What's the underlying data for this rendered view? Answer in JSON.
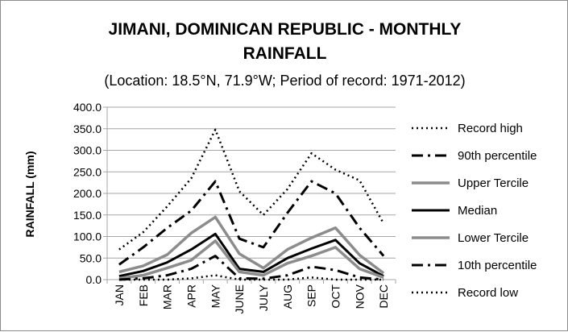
{
  "chart_data": {
    "type": "line",
    "title_line1": "JIMANI, DOMINICAN REPUBLIC - MONTHLY",
    "title_line2": "RAINFALL",
    "subtitle": "(Location: 18.5°N, 71.9°W; Period of record: 1971-2012)",
    "ylabel": "RAINFALL (mm)",
    "xlabel": "",
    "ylim": [
      0,
      400
    ],
    "yticks": [
      "0.0",
      "50.0",
      "100.0",
      "150.0",
      "200.0",
      "250.0",
      "300.0",
      "350.0",
      "400.0"
    ],
    "grid": true,
    "legend_position": "right",
    "categories": [
      "JAN",
      "FEB",
      "MAR",
      "APR",
      "MAY",
      "JUNE",
      "JULY",
      "AUG",
      "SEP",
      "OCT",
      "NOV",
      "DEC"
    ],
    "series": [
      {
        "name": "Record high",
        "values": [
          70,
          110,
          170,
          235,
          348,
          205,
          150,
          210,
          293,
          255,
          230,
          130
        ],
        "color": "#000000",
        "width": 2.5,
        "dash": "2,4"
      },
      {
        "name": "90th percentile",
        "values": [
          35,
          75,
          120,
          160,
          228,
          95,
          75,
          155,
          228,
          200,
          120,
          55
        ],
        "color": "#000000",
        "width": 3,
        "dash": "14,6,3,6"
      },
      {
        "name": "Upper Tercile",
        "values": [
          18,
          32,
          58,
          108,
          145,
          60,
          27,
          70,
          97,
          120,
          57,
          15
        ],
        "color": "#8c8c8c",
        "width": 3.5,
        "dash": ""
      },
      {
        "name": "Median",
        "values": [
          8,
          20,
          40,
          70,
          106,
          25,
          18,
          50,
          72,
          92,
          38,
          8
        ],
        "color": "#000000",
        "width": 3,
        "dash": ""
      },
      {
        "name": "Lower Tercile",
        "values": [
          3,
          10,
          27,
          45,
          90,
          18,
          10,
          38,
          55,
          75,
          25,
          5
        ],
        "color": "#8c8c8c",
        "width": 3.5,
        "dash": ""
      },
      {
        "name": "10th percentile",
        "values": [
          0,
          3,
          10,
          25,
          55,
          3,
          2,
          10,
          30,
          22,
          5,
          0
        ],
        "color": "#000000",
        "width": 3,
        "dash": "14,6,3,6"
      },
      {
        "name": "Record low",
        "values": [
          0,
          0,
          0,
          3,
          10,
          0,
          0,
          0,
          5,
          0,
          0,
          0
        ],
        "color": "#000000",
        "width": 2.5,
        "dash": "2,4"
      }
    ]
  }
}
